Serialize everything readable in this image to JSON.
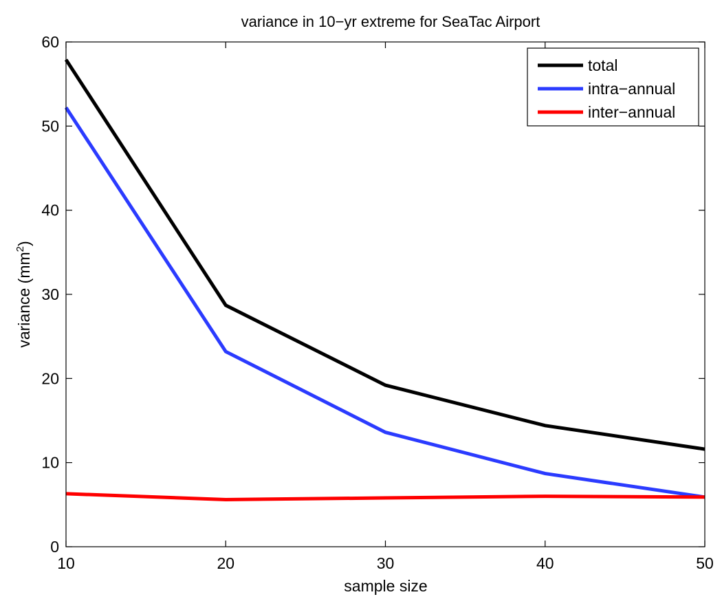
{
  "chart_data": {
    "type": "line",
    "title": "variance in 10−yr extreme for SeaTac Airport",
    "xlabel": "sample size",
    "ylabel_main": "variance (mm",
    "ylabel_sup": "2",
    "ylabel_close": ")",
    "xlim": [
      10,
      50
    ],
    "ylim": [
      0,
      60
    ],
    "x": [
      10,
      20,
      30,
      40,
      50
    ],
    "xticks": [
      "10",
      "20",
      "30",
      "40",
      "50"
    ],
    "yticks": [
      "0",
      "10",
      "20",
      "30",
      "40",
      "50",
      "60"
    ],
    "grid": false,
    "legend_position": "top-right",
    "series": [
      {
        "name": "total",
        "color": "#000000",
        "values": [
          57.9,
          28.7,
          19.2,
          14.4,
          11.6
        ]
      },
      {
        "name": "intra−annual",
        "color": "#2b3bff",
        "values": [
          52.2,
          23.2,
          13.6,
          8.7,
          5.9
        ]
      },
      {
        "name": "inter−annual",
        "color": "#ff0000",
        "values": [
          6.3,
          5.6,
          5.8,
          6.0,
          5.9
        ]
      }
    ]
  }
}
